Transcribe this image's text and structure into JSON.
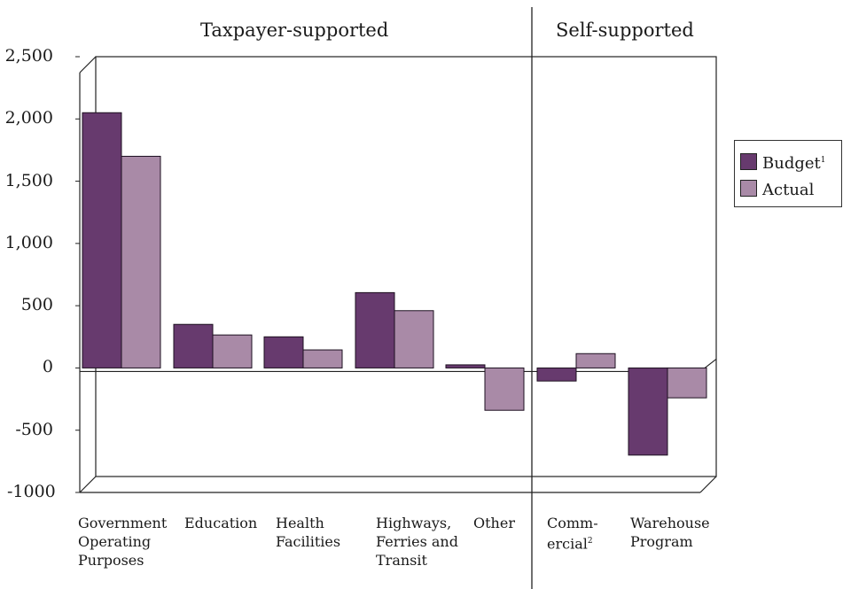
{
  "chart_data": {
    "type": "bar",
    "sections": [
      {
        "label": "Taxpayer-supported",
        "category_count": 5
      },
      {
        "label": "Self-supported",
        "category_count": 2
      }
    ],
    "categories": [
      {
        "lines": [
          "Government",
          "Operating",
          "Purposes"
        ]
      },
      {
        "lines": [
          "Education"
        ]
      },
      {
        "lines": [
          "Health",
          "Facilities"
        ]
      },
      {
        "lines": [
          "Highways,",
          "Ferries and",
          "Transit"
        ]
      },
      {
        "lines": [
          "Other"
        ]
      },
      {
        "lines": [
          "Comm-",
          "ercial"
        ],
        "footnote": "2"
      },
      {
        "lines": [
          "Warehouse",
          "Program"
        ]
      }
    ],
    "series": [
      {
        "name": "Budget",
        "footnote": "1",
        "color": "#673a6e",
        "values": [
          2050,
          350,
          250,
          605,
          25,
          -105,
          -700
        ]
      },
      {
        "name": "Actual",
        "color": "#a98aa7",
        "values": [
          1700,
          265,
          145,
          460,
          -340,
          115,
          -240
        ]
      }
    ],
    "y_ticks": [
      "2,500",
      "2,000",
      "1,500",
      "1,000",
      "500",
      "0",
      "-500",
      "-1000"
    ],
    "y_tick_values": [
      2500,
      2000,
      1500,
      1000,
      500,
      0,
      -500,
      -1000
    ],
    "ylim": [
      -1000,
      2500
    ],
    "legend_position": "right",
    "grid": false
  }
}
